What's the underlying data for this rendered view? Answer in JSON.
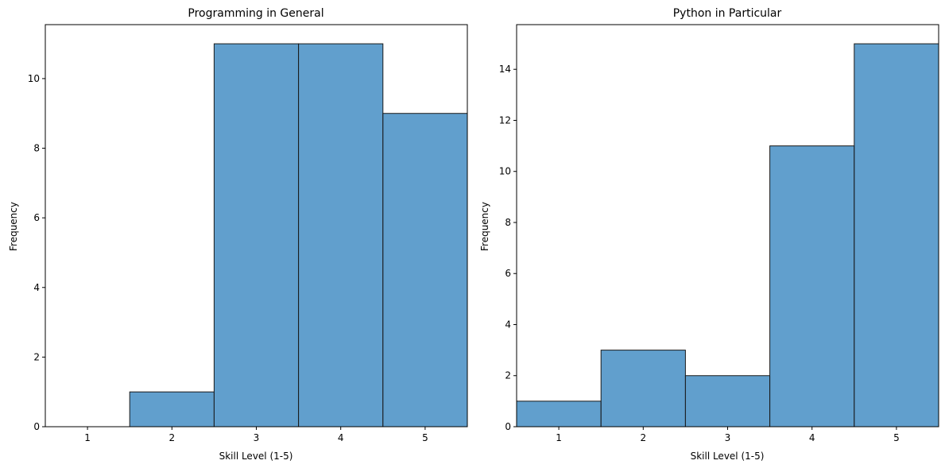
{
  "chart_data": [
    {
      "type": "bar",
      "title": "Programming in General",
      "xlabel": "Skill Level (1-5)",
      "ylabel": "Frequency",
      "categories": [
        1,
        2,
        3,
        4,
        5
      ],
      "values": [
        0,
        1,
        11,
        11,
        9
      ],
      "xticks": [
        "1",
        "2",
        "3",
        "4",
        "5"
      ],
      "yticks": [
        0,
        2,
        4,
        6,
        8,
        10
      ],
      "xlim": [
        0.5,
        5.5
      ],
      "ylim": [
        0,
        11.55
      ],
      "grid": false,
      "bar_color": "#3a87c0",
      "edge_color": "#1a1a1a"
    },
    {
      "type": "bar",
      "title": "Python in Particular",
      "xlabel": "Skill Level (1-5)",
      "ylabel": "Frequency",
      "categories": [
        1,
        2,
        3,
        4,
        5
      ],
      "values": [
        1,
        3,
        2,
        11,
        15
      ],
      "xticks": [
        "1",
        "2",
        "3",
        "4",
        "5"
      ],
      "yticks": [
        0,
        2,
        4,
        6,
        8,
        10,
        12,
        14
      ],
      "xlim": [
        0.5,
        5.5
      ],
      "ylim": [
        0,
        15.75
      ],
      "grid": false,
      "bar_color": "#3a87c0",
      "edge_color": "#1a1a1a"
    }
  ]
}
